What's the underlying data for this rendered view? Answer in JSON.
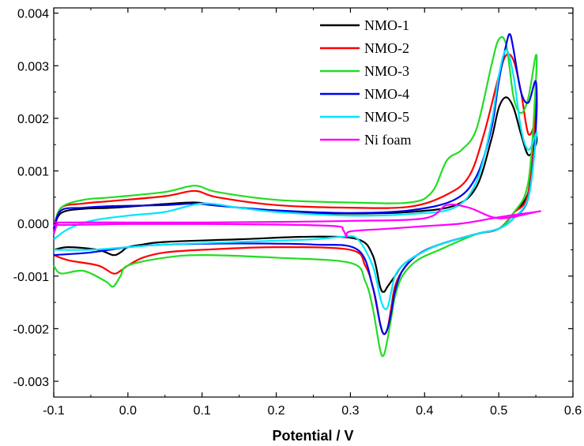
{
  "chart_data": {
    "type": "line",
    "title": "",
    "xlabel": "Potential / V",
    "ylabel": "",
    "xlim": [
      -0.1,
      0.6
    ],
    "ylim": [
      -0.0033,
      0.0041
    ],
    "x_ticks": [
      -0.1,
      0.0,
      0.1,
      0.2,
      0.3,
      0.4,
      0.5,
      0.6
    ],
    "x_tick_labels": [
      "-0.1",
      "0.0",
      "0.1",
      "0.2",
      "0.3",
      "0.4",
      "0.5",
      "0.6"
    ],
    "y_ticks": [
      -0.003,
      -0.002,
      -0.001,
      0.0,
      0.001,
      0.002,
      0.003,
      0.004
    ],
    "y_tick_labels": [
      "-0.003",
      "-0.002",
      "-0.001",
      "0.000",
      "0.001",
      "0.002",
      "0.003",
      "0.004"
    ],
    "grid": false,
    "legend_position": "top-right",
    "series": [
      {
        "name": "NMO-1",
        "color": "#000000",
        "x": [
          -0.1,
          -0.09,
          -0.06,
          -0.02,
          0.05,
          0.09,
          0.12,
          0.2,
          0.3,
          0.38,
          0.44,
          0.47,
          0.49,
          0.5,
          0.51,
          0.52,
          0.53,
          0.54,
          0.55,
          0.55,
          0.54,
          0.52,
          0.5,
          0.47,
          0.42,
          0.39,
          0.37,
          0.36,
          0.35,
          0.345,
          0.34,
          0.33,
          0.31,
          0.25,
          0.15,
          0.05,
          0.02,
          0.0,
          -0.01,
          -0.02,
          -0.04,
          -0.08,
          -0.1
        ],
        "y": [
          -0.0001,
          0.0002,
          0.00028,
          0.0003,
          0.00037,
          0.0004,
          0.00035,
          0.00023,
          0.00019,
          0.00022,
          0.00034,
          0.0007,
          0.0016,
          0.0022,
          0.0024,
          0.0022,
          0.0017,
          0.0013,
          0.0015,
          0.0016,
          0.0006,
          0.0002,
          -0.0001,
          -0.0002,
          -0.0004,
          -0.0006,
          -0.0008,
          -0.001,
          -0.0012,
          -0.0013,
          -0.0012,
          -0.0006,
          -0.0003,
          -0.00025,
          -0.0003,
          -0.00035,
          -0.0004,
          -0.00045,
          -0.00055,
          -0.0006,
          -0.0005,
          -0.00045,
          -0.0005
        ]
      },
      {
        "name": "NMO-2",
        "color": "#ff0000",
        "x": [
          -0.1,
          -0.09,
          -0.06,
          -0.02,
          0.05,
          0.09,
          0.12,
          0.2,
          0.3,
          0.38,
          0.43,
          0.46,
          0.48,
          0.5,
          0.51,
          0.52,
          0.53,
          0.54,
          0.55,
          0.55,
          0.54,
          0.52,
          0.5,
          0.47,
          0.42,
          0.39,
          0.37,
          0.36,
          0.355,
          0.35,
          0.345,
          0.34,
          0.33,
          0.32,
          0.3,
          0.2,
          0.1,
          0.05,
          0.02,
          0.0,
          -0.01,
          -0.02,
          -0.04,
          -0.08,
          -0.1
        ],
        "y": [
          -0.0001,
          0.0003,
          0.00038,
          0.00043,
          0.00052,
          0.00062,
          0.0005,
          0.00035,
          0.0003,
          0.00032,
          0.00055,
          0.0009,
          0.0017,
          0.0028,
          0.0032,
          0.0031,
          0.0025,
          0.0017,
          0.002,
          0.0023,
          0.0006,
          0.0002,
          -0.0001,
          -0.0002,
          -0.0004,
          -0.0006,
          -0.0009,
          -0.0012,
          -0.0016,
          -0.002,
          -0.0021,
          -0.0019,
          -0.0012,
          -0.0008,
          -0.0005,
          -0.00045,
          -0.0005,
          -0.00055,
          -0.00065,
          -0.0008,
          -0.0009,
          -0.00095,
          -0.0008,
          -0.0007,
          -0.0006
        ]
      },
      {
        "name": "NMO-3",
        "color": "#22dd22",
        "x": [
          -0.1,
          -0.09,
          -0.06,
          -0.02,
          0.05,
          0.09,
          0.12,
          0.2,
          0.3,
          0.38,
          0.41,
          0.43,
          0.45,
          0.47,
          0.49,
          0.5,
          0.51,
          0.52,
          0.53,
          0.54,
          0.55,
          0.55,
          0.54,
          0.52,
          0.5,
          0.47,
          0.42,
          0.39,
          0.37,
          0.36,
          0.355,
          0.35,
          0.345,
          0.34,
          0.33,
          0.32,
          0.3,
          0.2,
          0.1,
          0.05,
          0.0,
          -0.01,
          -0.02,
          -0.03,
          -0.06,
          -0.09,
          -0.1
        ],
        "y": [
          -0.0001,
          0.0003,
          0.00045,
          0.0005,
          0.0006,
          0.00072,
          0.0006,
          0.00045,
          0.0004,
          0.0004,
          0.0006,
          0.0012,
          0.0014,
          0.0018,
          0.003,
          0.0035,
          0.0034,
          0.0024,
          0.0021,
          0.0024,
          0.0032,
          0.0027,
          0.0008,
          0.0002,
          -0.0001,
          -0.0002,
          -0.0005,
          -0.0007,
          -0.001,
          -0.0014,
          -0.0018,
          -0.0022,
          -0.0025,
          -0.0024,
          -0.0016,
          -0.0011,
          -0.00075,
          -0.00065,
          -0.0006,
          -0.00065,
          -0.0008,
          -0.001,
          -0.0012,
          -0.0011,
          -0.0009,
          -0.00095,
          -0.0008
        ]
      },
      {
        "name": "NMO-4",
        "color": "#0000ee",
        "x": [
          -0.1,
          -0.09,
          -0.06,
          -0.02,
          0.05,
          0.09,
          0.12,
          0.2,
          0.3,
          0.38,
          0.44,
          0.47,
          0.49,
          0.5,
          0.51,
          0.515,
          0.52,
          0.53,
          0.54,
          0.55,
          0.55,
          0.54,
          0.52,
          0.5,
          0.47,
          0.42,
          0.39,
          0.37,
          0.36,
          0.355,
          0.35,
          0.345,
          0.34,
          0.33,
          0.31,
          0.25,
          0.15,
          0.05,
          0.0,
          -0.05,
          -0.1
        ],
        "y": [
          -0.0001,
          0.00025,
          0.0003,
          0.00033,
          0.00035,
          0.00038,
          0.00034,
          0.00025,
          0.0002,
          0.00025,
          0.00045,
          0.0009,
          0.0018,
          0.0027,
          0.0034,
          0.0036,
          0.0033,
          0.0025,
          0.0023,
          0.0027,
          0.0018,
          0.0005,
          0.0001,
          -0.0001,
          -0.0002,
          -0.0004,
          -0.0006,
          -0.0009,
          -0.0013,
          -0.0017,
          -0.002,
          -0.0021,
          -0.0019,
          -0.0012,
          -0.0005,
          -0.0004,
          -0.00038,
          -0.0004,
          -0.00045,
          -0.00055,
          -0.0006
        ]
      },
      {
        "name": "NMO-5",
        "color": "#00e5ff",
        "x": [
          -0.1,
          -0.08,
          -0.05,
          0.0,
          0.05,
          0.1,
          0.15,
          0.2,
          0.3,
          0.38,
          0.44,
          0.47,
          0.49,
          0.5,
          0.51,
          0.52,
          0.53,
          0.54,
          0.55,
          0.55,
          0.54,
          0.52,
          0.5,
          0.47,
          0.42,
          0.39,
          0.37,
          0.36,
          0.355,
          0.35,
          0.345,
          0.34,
          0.33,
          0.31,
          0.29,
          0.25,
          0.15,
          0.05,
          0.0,
          -0.05,
          -0.1
        ],
        "y": [
          -0.0003,
          -0.0001,
          5e-05,
          0.00015,
          0.00022,
          0.00038,
          0.0003,
          0.00022,
          0.00015,
          0.00018,
          0.0003,
          0.0008,
          0.0019,
          0.0028,
          0.0033,
          0.0028,
          0.0018,
          0.0014,
          0.0017,
          0.0016,
          0.0005,
          0.0001,
          -0.0001,
          -0.0002,
          -0.0004,
          -0.0006,
          -0.0008,
          -0.001,
          -0.0013,
          -0.0016,
          -0.0016,
          -0.0014,
          -0.0008,
          -0.0003,
          -0.00025,
          -0.0003,
          -0.00035,
          -0.0004,
          -0.00045,
          -0.0005,
          -0.0005
        ]
      },
      {
        "name": "Ni foam",
        "color": "#ff00ff",
        "x": [
          -0.1,
          -0.095,
          -0.09,
          0.0,
          0.1,
          0.2,
          0.3,
          0.4,
          0.43,
          0.46,
          0.5,
          0.55,
          0.55,
          0.5,
          0.45,
          0.4,
          0.35,
          0.3,
          0.295,
          0.29,
          0.28,
          0.2,
          0.1,
          0.0,
          -0.05,
          -0.1
        ],
        "y": [
          -0.0002,
          0.0,
          2e-05,
          2e-05,
          2e-05,
          3e-05,
          5e-05,
          0.0001,
          0.00035,
          0.0003,
          0.0001,
          0.00022,
          0.00022,
          0.00012,
          0.0,
          -5e-05,
          -0.0001,
          -0.00015,
          -0.00025,
          -0.00012,
          -5e-05,
          -2e-05,
          -1e-05,
          -1e-05,
          -2e-05,
          -3e-05
        ]
      }
    ]
  }
}
